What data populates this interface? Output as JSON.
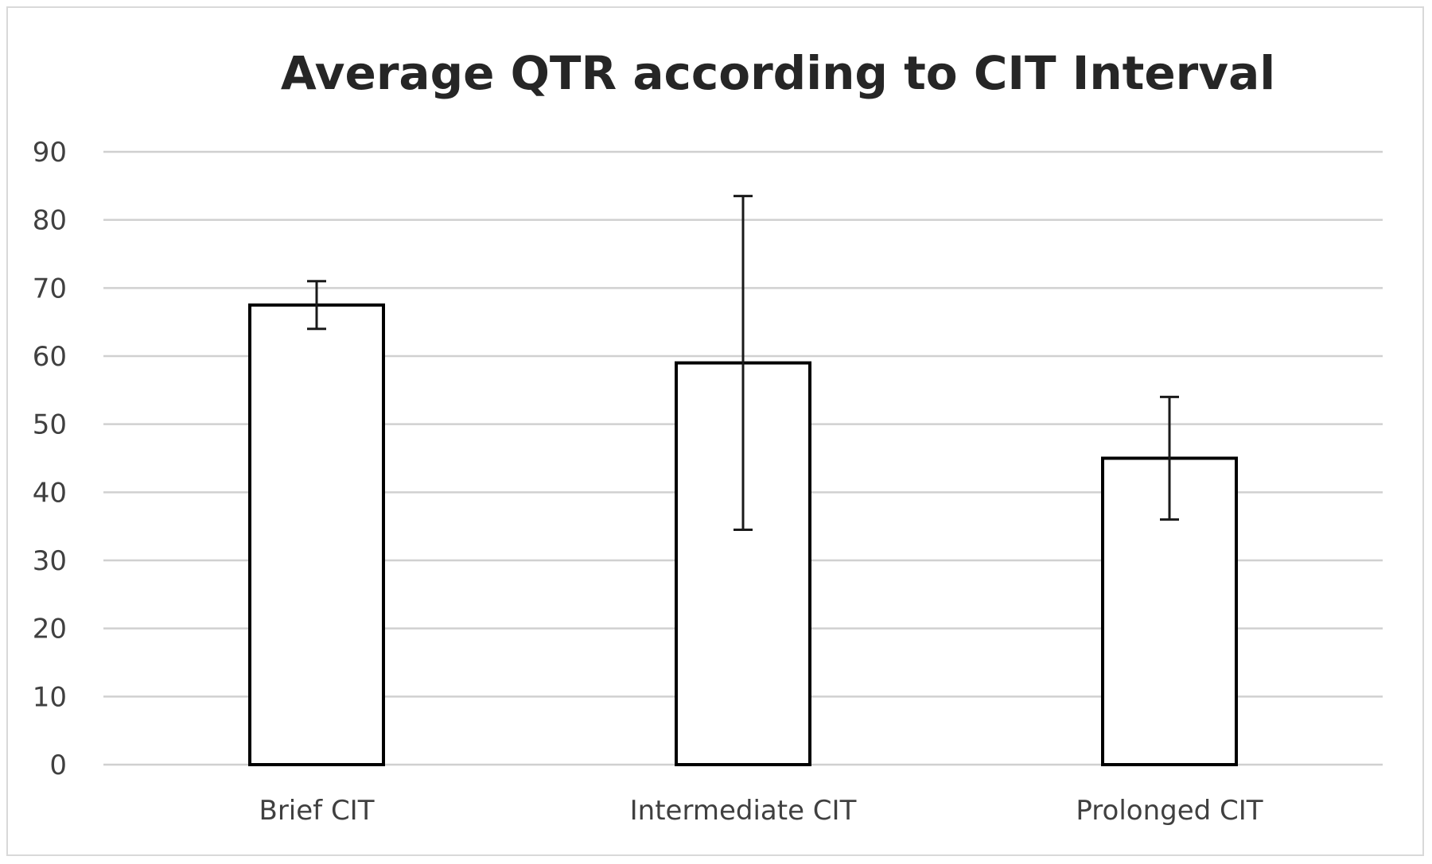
{
  "chart_data": {
    "type": "bar",
    "title": "Average QTR according to CIT Interval",
    "xlabel": "",
    "ylabel": "",
    "categories": [
      "Brief CIT",
      "Intermediate CIT",
      "Prolonged CIT"
    ],
    "values": [
      67.5,
      59,
      45
    ],
    "error_bars": [
      {
        "low": 64,
        "high": 71
      },
      {
        "low": 34.5,
        "high": 83.5
      },
      {
        "low": 36,
        "high": 54
      }
    ],
    "ylim": [
      0,
      90
    ],
    "yticks": [
      "0",
      "10",
      "20",
      "30",
      "40",
      "50",
      "60",
      "70",
      "80",
      "90"
    ],
    "grid": true,
    "legend": "none",
    "colors": {
      "bar_fill": "#ffffff",
      "bar_stroke": "#000000",
      "gridline": "#d0d0d0",
      "error_bar": "#1a1a1a"
    }
  }
}
